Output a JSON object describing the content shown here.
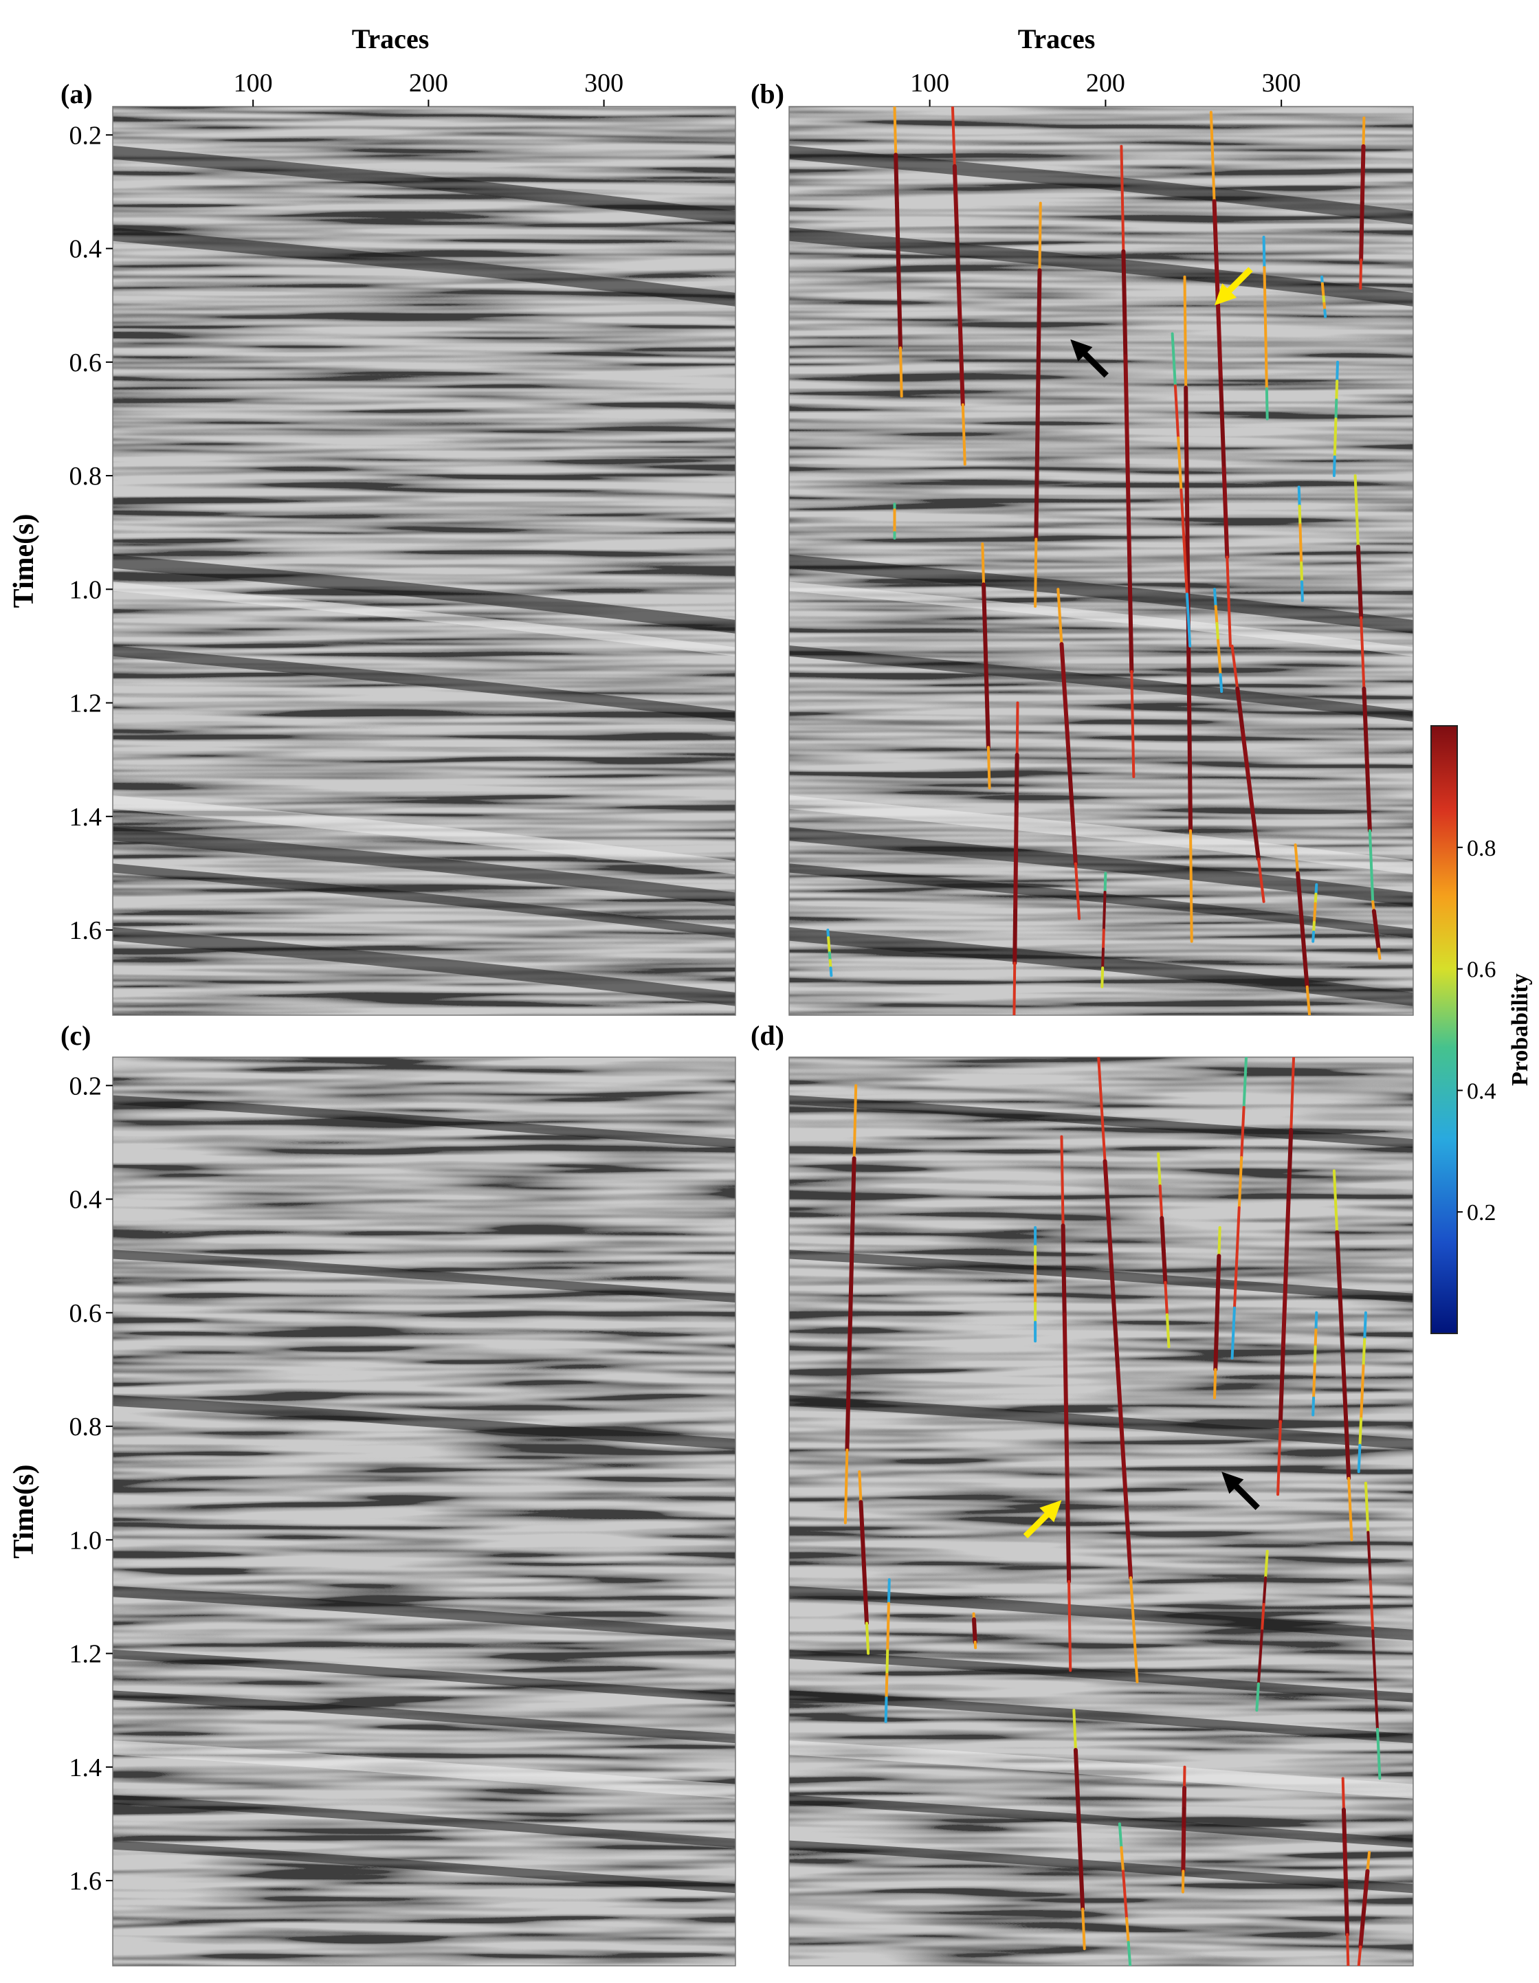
{
  "figure": {
    "top_axis_title": "Traces",
    "y_axis_title": "Time(s)",
    "colorbar_title": "Probability"
  },
  "chart_data": [
    {
      "type": "heatmap",
      "panel_label": "(a)",
      "content": "seismic section (grayscale)",
      "x_ticks": [
        "100",
        "200",
        "300"
      ],
      "y_ticks": [
        "0.2",
        "0.4",
        "0.6",
        "0.8",
        "1.0",
        "1.2",
        "1.4",
        "1.6"
      ],
      "xlim": [
        20,
        375
      ],
      "ylim": [
        0.15,
        1.75
      ],
      "overlay_faults": false
    },
    {
      "type": "heatmap",
      "panel_label": "(b)",
      "content": "seismic section with predicted fault probability overlay",
      "x_ticks": [
        "100",
        "200",
        "300"
      ],
      "y_ticks": [],
      "xlim": [
        20,
        375
      ],
      "ylim": [
        0.15,
        1.75
      ],
      "overlay_faults": true,
      "annotations": [
        {
          "arrow_color": "#000000",
          "trace": 180,
          "time": 0.56
        },
        {
          "arrow_color": "#ffeb00",
          "trace": 262,
          "time": 0.5
        }
      ]
    },
    {
      "type": "heatmap",
      "panel_label": "(c)",
      "content": "seismic section (grayscale)",
      "x_ticks": [],
      "y_ticks": [
        "0.2",
        "0.4",
        "0.6",
        "0.8",
        "1.0",
        "1.2",
        "1.4",
        "1.6"
      ],
      "xlim": [
        20,
        375
      ],
      "ylim": [
        0.15,
        1.75
      ],
      "overlay_faults": false
    },
    {
      "type": "heatmap",
      "panel_label": "(d)",
      "content": "seismic section with predicted fault probability overlay",
      "x_ticks": [],
      "y_ticks": [],
      "xlim": [
        20,
        375
      ],
      "ylim": [
        0.15,
        1.75
      ],
      "overlay_faults": true,
      "annotations": [
        {
          "arrow_color": "#ffeb00",
          "trace": 175,
          "time": 0.93
        },
        {
          "arrow_color": "#000000",
          "trace": 266,
          "time": 0.88
        }
      ]
    }
  ],
  "colorbar": {
    "ticks": [
      "0.2",
      "0.4",
      "0.6",
      "0.8"
    ],
    "range": [
      0,
      1
    ],
    "colors": [
      "#00137a",
      "#1a50c8",
      "#29a9df",
      "#45c28e",
      "#d6df2a",
      "#f5a01c",
      "#d8341f",
      "#7e0d12"
    ]
  },
  "colors": {
    "seismic_base": "#8c8c8c",
    "seismic_dark": "#151515",
    "seismic_light": "#f0f0f0",
    "black_arrow": "#000000",
    "yellow_arrow": "#ffeb00"
  }
}
